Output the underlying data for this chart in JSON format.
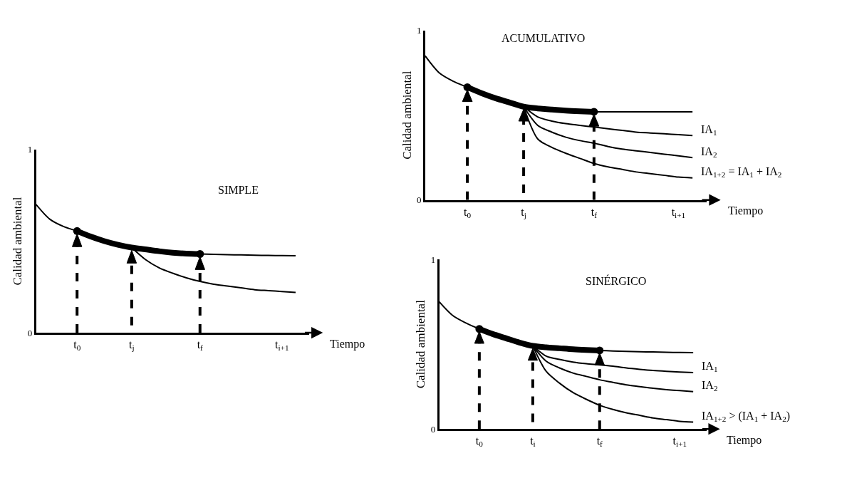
{
  "chart_data": [
    {
      "type": "line",
      "title": "SIMPLE",
      "xlabel": "Tiempo",
      "ylabel": "Calidad ambiental",
      "ylim": [
        0,
        1
      ],
      "yticks": [
        0,
        1
      ],
      "grid": false,
      "legend": false,
      "categories": [
        null,
        null,
        null,
        "t$_{0}$",
        null,
        null,
        null,
        "t$_{j}$",
        null,
        null,
        null,
        null,
        "t$_{f}$",
        null,
        null,
        null,
        null,
        null,
        "t$_{i+1}$",
        null
      ],
      "series": [
        {
          "color": "#000000",
          "line_style": "solid",
          "values": [
            0.7,
            0.62,
            0.58,
            0.555,
            0.525,
            0.5,
            0.48,
            0.465,
            0.455,
            0.445,
            0.437,
            0.432,
            0.43,
            0.428,
            0.426,
            0.425,
            0.423,
            0.422,
            0.421,
            0.42
          ]
        },
        {
          "color": "#000000",
          "line_style": "solid",
          "values": [
            null,
            null,
            null,
            0.555,
            0.525,
            0.5,
            0.48,
            0.465,
            0.455,
            0.445,
            0.437,
            0.432,
            0.43,
            null,
            null,
            null,
            null,
            null,
            null,
            null
          ]
        },
        {
          "color": "#000000",
          "line_style": "solid",
          "values": [
            null,
            null,
            null,
            null,
            null,
            null,
            null,
            0.465,
            0.4,
            0.355,
            0.325,
            0.3,
            0.28,
            0.265,
            0.255,
            0.245,
            0.235,
            0.23,
            0.225,
            0.22
          ]
        },
        {
          "type": "scatter",
          "marker": "circle",
          "color": "#000000",
          "values": [
            null,
            null,
            null,
            0.555,
            null,
            null,
            null,
            null,
            null,
            null,
            null,
            null,
            0.43,
            null,
            null,
            null,
            null,
            null,
            null,
            null
          ]
        }
      ]
    },
    {
      "type": "line",
      "title": "ACUMULATIVO",
      "xlabel": "Tiempo",
      "ylabel": "Calidad ambiental",
      "ylim": [
        0,
        1
      ],
      "yticks": [
        0,
        1
      ],
      "grid": false,
      "legend": false,
      "categories": [
        null,
        null,
        null,
        "t$_{0}$",
        null,
        null,
        null,
        "t$_{j}$",
        null,
        null,
        null,
        null,
        "t$_{f}$",
        null,
        null,
        null,
        null,
        null,
        "t$_{i+1}$",
        null
      ],
      "series": [
        {
          "color": "#000000",
          "line_style": "solid",
          "values": [
            0.85,
            0.75,
            0.7,
            0.665,
            0.63,
            0.6,
            0.575,
            0.55,
            0.54,
            0.533,
            0.527,
            0.523,
            0.52,
            0.52,
            0.52,
            0.52,
            0.52,
            0.52,
            0.52,
            0.52
          ]
        },
        {
          "color": "#000000",
          "line_style": "solid",
          "values": [
            null,
            null,
            null,
            0.665,
            0.63,
            0.6,
            0.575,
            0.55,
            0.54,
            0.533,
            0.527,
            0.523,
            0.52,
            null,
            null,
            null,
            null,
            null,
            null,
            null
          ]
        },
        {
          "color": "#000000",
          "line_style": "solid",
          "values": [
            null,
            null,
            null,
            null,
            null,
            null,
            null,
            0.55,
            0.49,
            0.465,
            0.45,
            0.44,
            0.43,
            0.42,
            0.41,
            0.4,
            0.395,
            0.39,
            0.385,
            0.38
          ]
        },
        {
          "color": "#000000",
          "line_style": "solid",
          "values": [
            null,
            null,
            null,
            null,
            null,
            null,
            null,
            0.55,
            0.44,
            0.4,
            0.37,
            0.35,
            0.335,
            0.315,
            0.3,
            0.29,
            0.28,
            0.27,
            0.26,
            0.25
          ]
        },
        {
          "color": "#000000",
          "line_style": "solid",
          "values": [
            null,
            null,
            null,
            null,
            null,
            null,
            null,
            0.55,
            0.36,
            0.31,
            0.275,
            0.245,
            0.215,
            0.195,
            0.18,
            0.165,
            0.155,
            0.145,
            0.135,
            0.13
          ]
        },
        {
          "type": "scatter",
          "marker": "circle",
          "color": "#000000",
          "values": [
            null,
            null,
            null,
            0.665,
            null,
            null,
            null,
            null,
            null,
            null,
            null,
            null,
            0.52,
            null,
            null,
            null,
            null,
            null,
            null,
            null
          ]
        }
      ],
      "annotations": [
        "IA$_{1}$",
        "IA$_{2}$",
        "IA$_{1+2}$ = IA$_{1}$ + IA$_{2}$"
      ]
    },
    {
      "type": "line",
      "title": "SINÉRGICO",
      "xlabel": "Tiempo",
      "ylabel": "Calidad ambiental",
      "ylim": [
        0,
        1
      ],
      "yticks": [
        0,
        1
      ],
      "grid": false,
      "legend": false,
      "categories": [
        null,
        null,
        null,
        "t$_{0}$",
        null,
        null,
        null,
        "t$_{i}$",
        null,
        null,
        null,
        null,
        "t$_{f}$",
        null,
        null,
        null,
        null,
        null,
        "t$_{i+1}$",
        null
      ],
      "series": [
        {
          "color": "#000000",
          "line_style": "solid",
          "values": [
            0.75,
            0.67,
            0.625,
            0.59,
            0.56,
            0.535,
            0.51,
            0.49,
            0.482,
            0.476,
            0.47,
            0.466,
            0.463,
            0.46,
            0.458,
            0.456,
            0.454,
            0.452,
            0.451,
            0.45
          ]
        },
        {
          "color": "#000000",
          "line_style": "solid",
          "values": [
            null,
            null,
            null,
            0.59,
            0.56,
            0.535,
            0.51,
            0.49,
            0.482,
            0.476,
            0.47,
            0.466,
            0.463,
            null,
            null,
            null,
            null,
            null,
            null,
            null
          ]
        },
        {
          "color": "#000000",
          "line_style": "solid",
          "values": [
            null,
            null,
            null,
            null,
            null,
            null,
            null,
            0.49,
            0.43,
            0.41,
            0.395,
            0.385,
            0.378,
            0.37,
            0.36,
            0.352,
            0.345,
            0.34,
            0.336,
            0.333
          ]
        },
        {
          "color": "#000000",
          "line_style": "solid",
          "values": [
            null,
            null,
            null,
            null,
            null,
            null,
            null,
            0.49,
            0.4,
            0.36,
            0.33,
            0.31,
            0.29,
            0.275,
            0.26,
            0.25,
            0.24,
            0.232,
            0.226,
            0.22
          ]
        },
        {
          "color": "#000000",
          "line_style": "solid",
          "values": [
            null,
            null,
            null,
            null,
            null,
            null,
            null,
            0.49,
            0.34,
            0.27,
            0.215,
            0.175,
            0.14,
            0.115,
            0.095,
            0.08,
            0.065,
            0.055,
            0.045,
            0.04
          ]
        },
        {
          "type": "scatter",
          "marker": "circle",
          "color": "#000000",
          "values": [
            null,
            null,
            null,
            0.59,
            null,
            null,
            null,
            null,
            null,
            null,
            null,
            null,
            0.463,
            null,
            null,
            null,
            null,
            null,
            null,
            null
          ]
        }
      ],
      "annotations": [
        "IA$_{1}$",
        "IA$_{2}$",
        "IA$_{1+2}$ > (IA$_{1}$ + IA$_{2}$)"
      ]
    }
  ]
}
